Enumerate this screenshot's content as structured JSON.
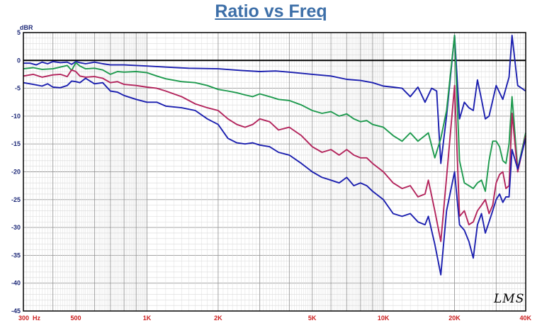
{
  "chart_data": {
    "type": "line",
    "title": "Ratio vs Freq",
    "ylabel": "dBR",
    "x_scale": "log",
    "xlim": [
      300,
      40000
    ],
    "ylim": [
      -45,
      5
    ],
    "grid": true,
    "x_tick_labels": [
      {
        "value": 300,
        "label": "300  Hz"
      },
      {
        "value": 500,
        "label": "500"
      },
      {
        "value": 1000,
        "label": "1K"
      },
      {
        "value": 2000,
        "label": "2K"
      },
      {
        "value": 5000,
        "label": "5K"
      },
      {
        "value": 10000,
        "label": "10K"
      },
      {
        "value": 20000,
        "label": "20K"
      },
      {
        "value": 40000,
        "label": "40K"
      }
    ],
    "y_ticks": [
      5,
      0,
      -5,
      -10,
      -15,
      -20,
      -25,
      -30,
      -35,
      -40,
      -45
    ],
    "reference_line": 0,
    "watermark": "LMS",
    "series": [
      {
        "color": "#1b1faf",
        "points": [
          [
            300,
            -0.5
          ],
          [
            320,
            -0.5
          ],
          [
            340,
            -0.8
          ],
          [
            360,
            -0.3
          ],
          [
            380,
            -0.6
          ],
          [
            400,
            -0.2
          ],
          [
            430,
            -0.4
          ],
          [
            460,
            -0.3
          ],
          [
            480,
            -0.7
          ],
          [
            500,
            -0.2
          ],
          [
            520,
            -0.4
          ],
          [
            550,
            -0.6
          ],
          [
            600,
            -0.3
          ],
          [
            650,
            -0.6
          ],
          [
            700,
            -0.8
          ],
          [
            800,
            -0.8
          ],
          [
            900,
            -0.9
          ],
          [
            1000,
            -1.0
          ],
          [
            1200,
            -1.2
          ],
          [
            1500,
            -1.4
          ],
          [
            2000,
            -1.5
          ],
          [
            2500,
            -1.8
          ],
          [
            3000,
            -2.0
          ],
          [
            3500,
            -1.9
          ],
          [
            4000,
            -2.1
          ],
          [
            4500,
            -2.3
          ],
          [
            5000,
            -2.5
          ],
          [
            6000,
            -2.8
          ],
          [
            7000,
            -3.4
          ],
          [
            8000,
            -3.6
          ],
          [
            9000,
            -4.0
          ],
          [
            10000,
            -4.6
          ],
          [
            11000,
            -4.8
          ],
          [
            12000,
            -5.0
          ],
          [
            13000,
            -6.5
          ],
          [
            14000,
            -4.8
          ],
          [
            15000,
            -7.5
          ],
          [
            16000,
            -5.0
          ],
          [
            16800,
            -5.5
          ],
          [
            17500,
            -18.5
          ],
          [
            18500,
            -10.0
          ],
          [
            20000,
            4.5
          ],
          [
            21000,
            -10.5
          ],
          [
            22000,
            -7.5
          ],
          [
            23000,
            -8.5
          ],
          [
            24000,
            -9.0
          ],
          [
            25000,
            -3.5
          ],
          [
            26000,
            -7.0
          ],
          [
            27000,
            -10.5
          ],
          [
            28000,
            -10.0
          ],
          [
            30000,
            -4.5
          ],
          [
            32000,
            -7.0
          ],
          [
            34000,
            -3.0
          ],
          [
            35000,
            4.5
          ],
          [
            37000,
            -4.5
          ],
          [
            40000,
            -5.5
          ]
        ]
      },
      {
        "color": "#1e9a4e",
        "points": [
          [
            300,
            -1.5
          ],
          [
            330,
            -1.3
          ],
          [
            360,
            -1.6
          ],
          [
            400,
            -1.5
          ],
          [
            430,
            -1.2
          ],
          [
            460,
            -0.9
          ],
          [
            480,
            -1.8
          ],
          [
            500,
            -0.4
          ],
          [
            520,
            -1.0
          ],
          [
            550,
            -1.5
          ],
          [
            600,
            -1.4
          ],
          [
            650,
            -1.7
          ],
          [
            700,
            -2.5
          ],
          [
            750,
            -2.0
          ],
          [
            800,
            -2.1
          ],
          [
            900,
            -2.0
          ],
          [
            1000,
            -2.2
          ],
          [
            1100,
            -2.8
          ],
          [
            1200,
            -3.3
          ],
          [
            1400,
            -3.8
          ],
          [
            1600,
            -4.0
          ],
          [
            1800,
            -4.5
          ],
          [
            2000,
            -5.2
          ],
          [
            2200,
            -5.5
          ],
          [
            2400,
            -5.8
          ],
          [
            2600,
            -6.2
          ],
          [
            2800,
            -6.5
          ],
          [
            3000,
            -6.0
          ],
          [
            3300,
            -6.5
          ],
          [
            3600,
            -7.0
          ],
          [
            4000,
            -7.2
          ],
          [
            4500,
            -8.0
          ],
          [
            5000,
            -9.0
          ],
          [
            5500,
            -9.5
          ],
          [
            6000,
            -9.2
          ],
          [
            6500,
            -10.0
          ],
          [
            7000,
            -9.6
          ],
          [
            7500,
            -10.5
          ],
          [
            8000,
            -11.0
          ],
          [
            8500,
            -10.8
          ],
          [
            9000,
            -11.5
          ],
          [
            10000,
            -12.0
          ],
          [
            11000,
            -13.5
          ],
          [
            12000,
            -14.5
          ],
          [
            13000,
            -13.0
          ],
          [
            14000,
            -14.5
          ],
          [
            15000,
            -13.5
          ],
          [
            15500,
            -13.0
          ],
          [
            16500,
            -17.5
          ],
          [
            17500,
            -14.0
          ],
          [
            18500,
            -9.0
          ],
          [
            20000,
            4.5
          ],
          [
            21000,
            -18.0
          ],
          [
            22000,
            -22.0
          ],
          [
            23000,
            -22.5
          ],
          [
            24000,
            -23.0
          ],
          [
            25000,
            -22.0
          ],
          [
            26000,
            -21.5
          ],
          [
            27000,
            -23.5
          ],
          [
            28000,
            -18.0
          ],
          [
            29000,
            -14.5
          ],
          [
            30000,
            -14.5
          ],
          [
            31000,
            -15.5
          ],
          [
            32000,
            -18.0
          ],
          [
            33000,
            -18.5
          ],
          [
            34000,
            -15.0
          ],
          [
            35000,
            -6.5
          ],
          [
            37000,
            -19.5
          ],
          [
            40000,
            -13.0
          ]
        ]
      },
      {
        "color": "#b3245c",
        "points": [
          [
            300,
            -2.8
          ],
          [
            330,
            -2.5
          ],
          [
            360,
            -3.0
          ],
          [
            400,
            -2.6
          ],
          [
            430,
            -2.5
          ],
          [
            460,
            -2.9
          ],
          [
            480,
            -1.7
          ],
          [
            500,
            -2.0
          ],
          [
            520,
            -2.8
          ],
          [
            550,
            -3.0
          ],
          [
            600,
            -2.9
          ],
          [
            650,
            -3.2
          ],
          [
            700,
            -4.0
          ],
          [
            750,
            -3.8
          ],
          [
            800,
            -4.3
          ],
          [
            900,
            -4.5
          ],
          [
            1000,
            -4.8
          ],
          [
            1100,
            -5.0
          ],
          [
            1200,
            -5.5
          ],
          [
            1400,
            -6.5
          ],
          [
            1600,
            -7.8
          ],
          [
            1800,
            -8.5
          ],
          [
            2000,
            -9.0
          ],
          [
            2200,
            -10.5
          ],
          [
            2400,
            -11.5
          ],
          [
            2600,
            -12.0
          ],
          [
            2800,
            -11.5
          ],
          [
            3000,
            -10.5
          ],
          [
            3300,
            -11.0
          ],
          [
            3600,
            -12.5
          ],
          [
            4000,
            -12.0
          ],
          [
            4500,
            -13.5
          ],
          [
            5000,
            -15.5
          ],
          [
            5500,
            -16.5
          ],
          [
            6000,
            -16.0
          ],
          [
            6500,
            -17.0
          ],
          [
            7000,
            -16.0
          ],
          [
            7500,
            -17.0
          ],
          [
            8000,
            -17.5
          ],
          [
            8500,
            -17.5
          ],
          [
            9000,
            -18.5
          ],
          [
            10000,
            -20.0
          ],
          [
            11000,
            -22.0
          ],
          [
            12000,
            -23.0
          ],
          [
            13000,
            -22.5
          ],
          [
            14000,
            -24.5
          ],
          [
            15000,
            -24.0
          ],
          [
            15500,
            -21.5
          ],
          [
            16500,
            -27.0
          ],
          [
            17500,
            -32.5
          ],
          [
            18500,
            -21.0
          ],
          [
            20000,
            -4.5
          ],
          [
            21000,
            -28.0
          ],
          [
            22000,
            -27.0
          ],
          [
            23000,
            -29.5
          ],
          [
            24000,
            -29.0
          ],
          [
            25000,
            -27.0
          ],
          [
            26000,
            -26.0
          ],
          [
            27000,
            -25.0
          ],
          [
            28000,
            -27.5
          ],
          [
            29000,
            -26.0
          ],
          [
            30000,
            -22.0
          ],
          [
            31000,
            -20.5
          ],
          [
            32000,
            -20.0
          ],
          [
            33000,
            -23.0
          ],
          [
            34000,
            -22.5
          ],
          [
            35000,
            -9.5
          ],
          [
            37000,
            -20.0
          ],
          [
            40000,
            -13.5
          ]
        ]
      },
      {
        "color": "#1b1faf",
        "points": [
          [
            300,
            -4.0
          ],
          [
            330,
            -4.3
          ],
          [
            360,
            -4.6
          ],
          [
            380,
            -4.2
          ],
          [
            400,
            -4.8
          ],
          [
            430,
            -4.9
          ],
          [
            460,
            -4.5
          ],
          [
            480,
            -3.7
          ],
          [
            500,
            -3.8
          ],
          [
            520,
            -4.0
          ],
          [
            550,
            -3.2
          ],
          [
            600,
            -4.2
          ],
          [
            650,
            -4.0
          ],
          [
            700,
            -5.5
          ],
          [
            750,
            -5.7
          ],
          [
            800,
            -6.3
          ],
          [
            900,
            -7.0
          ],
          [
            1000,
            -7.5
          ],
          [
            1100,
            -7.5
          ],
          [
            1200,
            -8.2
          ],
          [
            1400,
            -8.5
          ],
          [
            1600,
            -9.0
          ],
          [
            1800,
            -10.5
          ],
          [
            2000,
            -11.5
          ],
          [
            2200,
            -14.0
          ],
          [
            2400,
            -14.8
          ],
          [
            2600,
            -15.0
          ],
          [
            2800,
            -14.8
          ],
          [
            3000,
            -15.2
          ],
          [
            3300,
            -15.5
          ],
          [
            3600,
            -16.5
          ],
          [
            4000,
            -17.0
          ],
          [
            4500,
            -18.5
          ],
          [
            5000,
            -20.0
          ],
          [
            5500,
            -21.0
          ],
          [
            6000,
            -21.5
          ],
          [
            6500,
            -22.0
          ],
          [
            7000,
            -21.0
          ],
          [
            7500,
            -22.5
          ],
          [
            8000,
            -22.0
          ],
          [
            8500,
            -22.5
          ],
          [
            9000,
            -23.5
          ],
          [
            10000,
            -25.0
          ],
          [
            11000,
            -27.5
          ],
          [
            12000,
            -28.0
          ],
          [
            13000,
            -27.5
          ],
          [
            14000,
            -29.0
          ],
          [
            15000,
            -29.5
          ],
          [
            15500,
            -28.0
          ],
          [
            16500,
            -33.0
          ],
          [
            17500,
            -38.5
          ],
          [
            18500,
            -27.0
          ],
          [
            20000,
            -20.0
          ],
          [
            21000,
            -29.5
          ],
          [
            22000,
            -30.5
          ],
          [
            23000,
            -32.5
          ],
          [
            24000,
            -35.5
          ],
          [
            25000,
            -29.5
          ],
          [
            26000,
            -27.5
          ],
          [
            27000,
            -31.0
          ],
          [
            28000,
            -29.0
          ],
          [
            29000,
            -27.0
          ],
          [
            30000,
            -25.0
          ],
          [
            31000,
            -24.0
          ],
          [
            32000,
            -25.5
          ],
          [
            33000,
            -24.5
          ],
          [
            34000,
            -24.5
          ],
          [
            35000,
            -16.0
          ],
          [
            37000,
            -19.5
          ],
          [
            40000,
            -14.0
          ]
        ]
      }
    ]
  }
}
